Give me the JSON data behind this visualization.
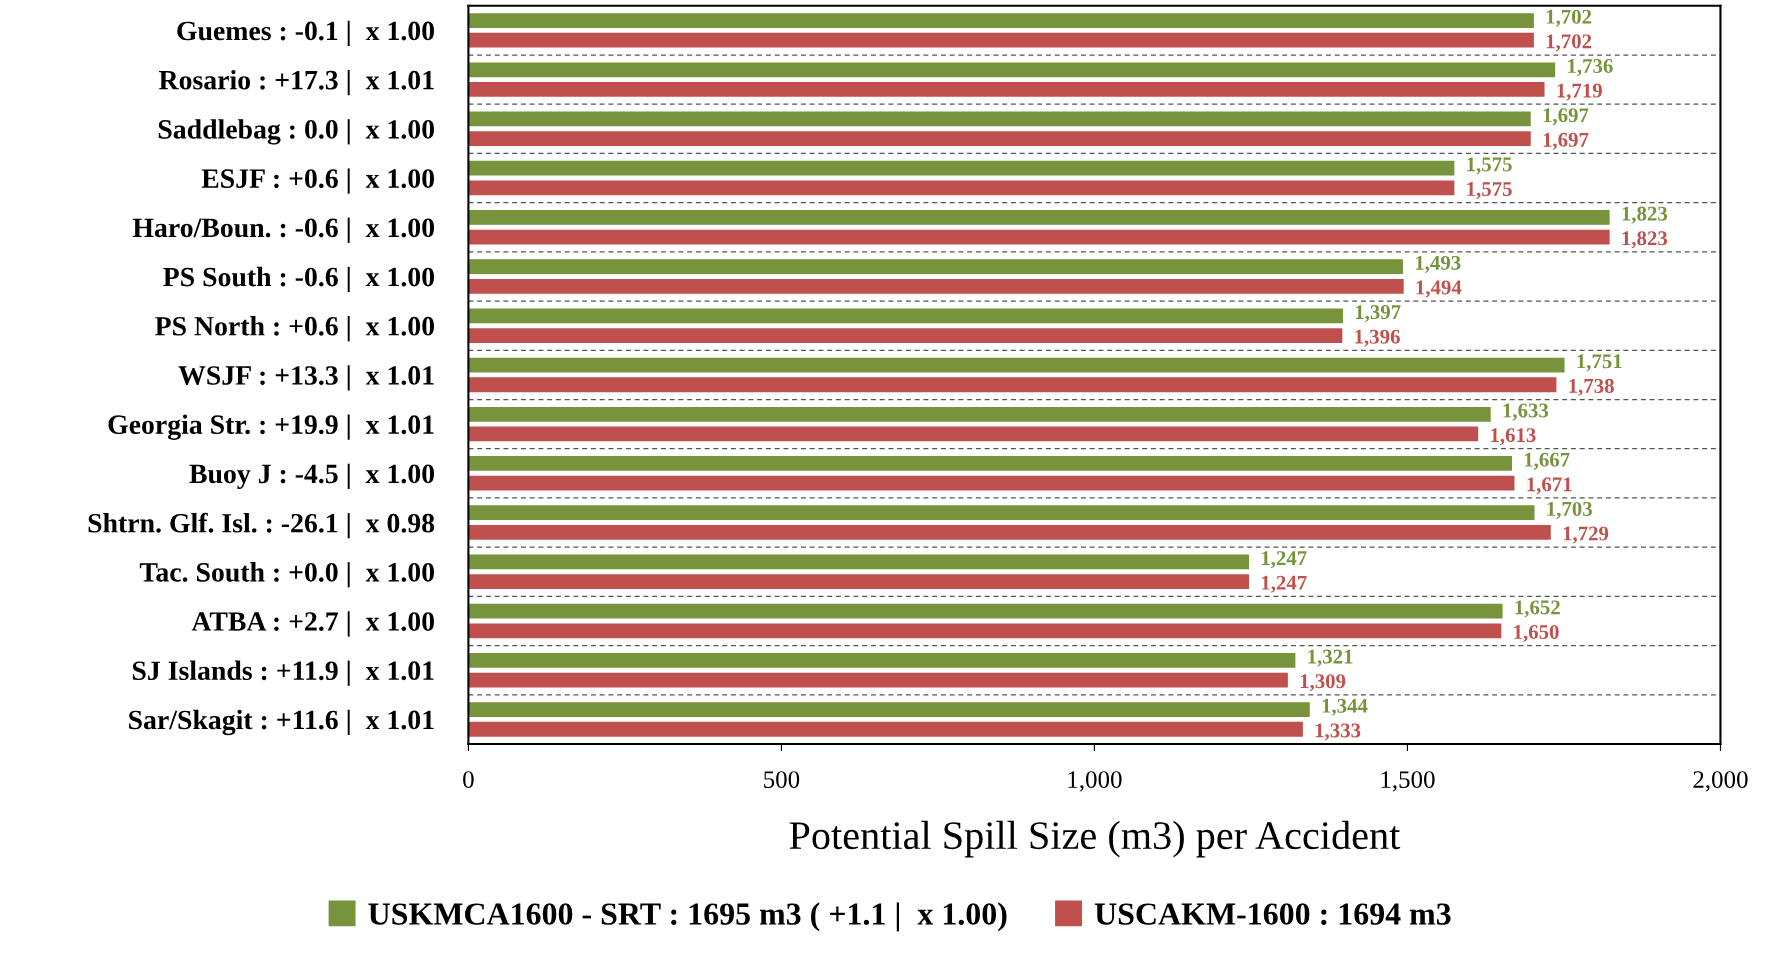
{
  "chart_data": {
    "type": "bar",
    "orientation": "horizontal",
    "xlabel": "Potential Spill Size (m3) per Accident",
    "categories": [
      "Guemes : -0.1 |  x 1.00",
      "Rosario : +17.3 |  x 1.01",
      "Saddlebag : 0.0 |  x 1.00",
      "ESJF : +0.6 |  x 1.00",
      "Haro/Boun. : -0.6 |  x 1.00",
      "PS South : -0.6 |  x 1.00",
      "PS North : +0.6 |  x 1.00",
      "WSJF : +13.3 |  x 1.01",
      "Georgia Str. : +19.9 |  x 1.01",
      "Buoy J : -4.5 |  x 1.00",
      "Shtrn. Glf. Isl. : -26.1 |  x 0.98",
      "Tac. South : +0.0 |  x 1.00",
      "ATBA : +2.7 |  x 1.00",
      "SJ Islands : +11.9 |  x 1.01",
      "Sar/Skagit : +11.6 |  x 1.01"
    ],
    "series": [
      {
        "name": "USKMCA1600 - SRT : 1695 m3 ( +1.1 |  x 1.00)",
        "color": "#77933c",
        "values": [
          1702,
          1736,
          1697,
          1575,
          1823,
          1493,
          1397,
          1751,
          1633,
          1667,
          1703,
          1247,
          1652,
          1321,
          1344
        ],
        "value_labels": [
          "1,702",
          "1,736",
          "1,697",
          "1,575",
          "1,823",
          "1,493",
          "1,397",
          "1,751",
          "1,633",
          "1,667",
          "1,703",
          "1,247",
          "1,652",
          "1,321",
          "1,344"
        ]
      },
      {
        "name": "USCAKM-1600 : 1694 m3",
        "color": "#c0504d",
        "values": [
          1702,
          1719,
          1697,
          1575,
          1823,
          1494,
          1396,
          1738,
          1613,
          1671,
          1729,
          1247,
          1650,
          1309,
          1333
        ],
        "value_labels": [
          "1,702",
          "1,719",
          "1,697",
          "1,575",
          "1,823",
          "1,494",
          "1,396",
          "1,738",
          "1,613",
          "1,671",
          "1,729",
          "1,247",
          "1,650",
          "1,309",
          "1,333"
        ]
      }
    ],
    "xlim": [
      0,
      2000
    ],
    "xticks": [
      0,
      500,
      {
        "value": 1000,
        "label": "1,000"
      },
      {
        "value": 1500,
        "label": "1,500"
      },
      {
        "value": 2000,
        "label": "2,000"
      }
    ],
    "grid": "y",
    "legend": "bottom"
  }
}
